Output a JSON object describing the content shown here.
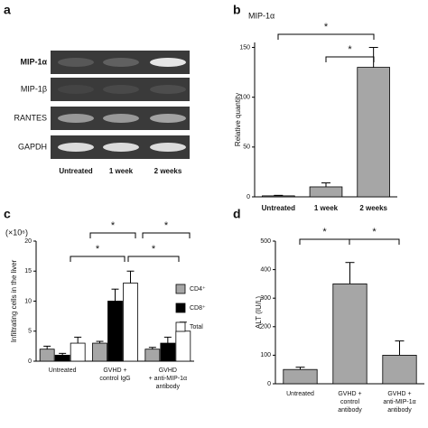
{
  "gel": {
    "panel": "a",
    "rows": [
      "MIP-1α",
      "MIP-1β",
      "RANTES",
      "GAPDH"
    ],
    "lanes": [
      "Untreated",
      "1 week",
      "2 weeks"
    ]
  },
  "chart_data": [
    {
      "type": "bar",
      "panel": "b",
      "title": "MIP-1α",
      "y_label": "Relative quantity",
      "categories": [
        "Untreated",
        "1 week",
        "2 weeks"
      ],
      "values": [
        1,
        10,
        130
      ],
      "errors": [
        0.5,
        4,
        20
      ],
      "color": "#a6a6a6",
      "ylim": [
        0,
        155
      ],
      "yticks": [
        0,
        50,
        100,
        150
      ],
      "annotations": [
        "*",
        "*"
      ]
    },
    {
      "type": "grouped_bar",
      "panel": "c",
      "multiplier": "(×10⁶)",
      "y_label": "Infiltrating cells in the liver",
      "categories": [
        [
          "Untreated"
        ],
        [
          "GVHD +",
          "control IgG"
        ],
        [
          "GVHD",
          "+ anti-MIP-1α",
          "antibody"
        ]
      ],
      "series": [
        {
          "name": "CD4⁺",
          "color": "#a6a6a6",
          "values": [
            2,
            3,
            2
          ],
          "errors": [
            0.5,
            0.3,
            0.3
          ]
        },
        {
          "name": "CD8⁺",
          "color": "#000000",
          "values": [
            1,
            10,
            3
          ],
          "errors": [
            0.3,
            2,
            1
          ]
        },
        {
          "name": "Total",
          "color": "#ffffff",
          "values": [
            3,
            13,
            5
          ],
          "errors": [
            1,
            2,
            1.5
          ]
        }
      ],
      "ylim": [
        0,
        20
      ],
      "yticks": [
        0,
        5,
        10,
        15,
        20
      ],
      "annotations": [
        "*",
        "*",
        "*",
        "*"
      ]
    },
    {
      "type": "bar",
      "panel": "d",
      "y_label": "ALT (IU/L)",
      "categories": [
        [
          "Untreated"
        ],
        [
          "GVHD +",
          "control",
          "antibody"
        ],
        [
          "GVHD +",
          "anti-MIP-1α",
          "antibody"
        ]
      ],
      "values": [
        50,
        350,
        100
      ],
      "errors": [
        8,
        75,
        50
      ],
      "color": "#a6a6a6",
      "ylim": [
        0,
        500
      ],
      "yticks": [
        0,
        100,
        200,
        300,
        400,
        500
      ],
      "annotations": [
        "*",
        "*"
      ]
    }
  ]
}
